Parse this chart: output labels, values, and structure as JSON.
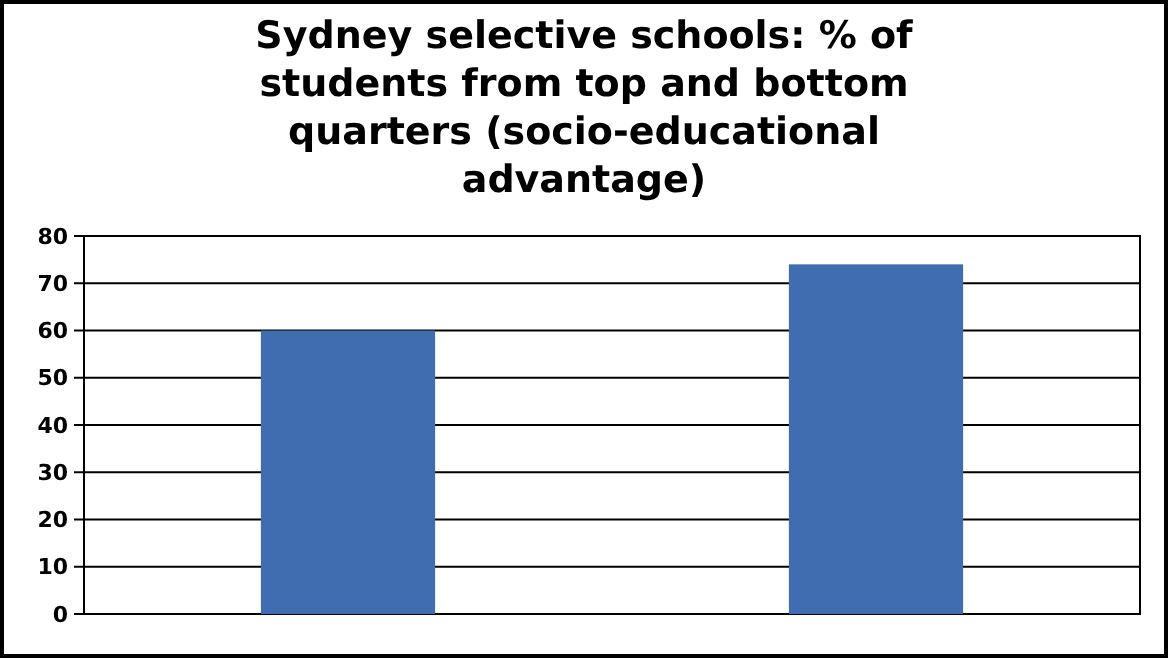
{
  "chart_data": {
    "type": "bar",
    "title": "Sydney selective schools: % of students from top and bottom quarters (socio-educational advantage)",
    "categories": [
      null,
      null
    ],
    "values": [
      60,
      74
    ],
    "color": "#3f6db0",
    "ylim": [
      0,
      80
    ],
    "yticks": [
      0,
      10,
      20,
      30,
      40,
      50,
      60,
      70,
      80
    ],
    "grid": "y"
  }
}
